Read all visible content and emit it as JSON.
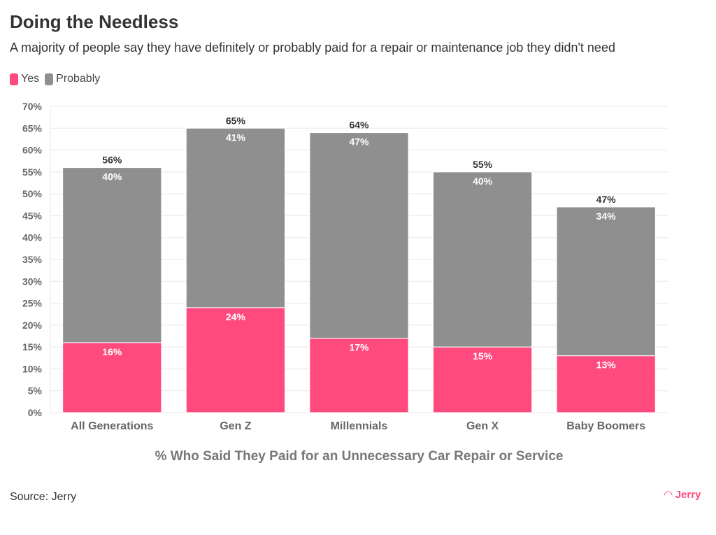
{
  "chart_data": {
    "type": "bar",
    "stacked": true,
    "title": "Doing the Needless",
    "subtitle": "A majority of people say they have definitely or probably paid for a repair or maintenance job they didn't need",
    "xlabel": "% Who Said They Paid for an Unnecessary Car Repair or Service",
    "ylabel": "",
    "categories": [
      "All Generations",
      "Gen Z",
      "Millennials",
      "Gen X",
      "Baby Boomers"
    ],
    "series": [
      {
        "name": "Yes",
        "color": "#ff4a7d",
        "values": [
          16,
          24,
          17,
          15,
          13
        ]
      },
      {
        "name": "Probably",
        "color": "#8f8f8f",
        "values": [
          40,
          41,
          47,
          40,
          34
        ]
      }
    ],
    "totals": [
      56,
      65,
      64,
      55,
      47
    ],
    "ylim": [
      0,
      70
    ],
    "yticks": [
      0,
      5,
      10,
      15,
      20,
      25,
      30,
      35,
      40,
      45,
      50,
      55,
      60,
      65,
      70
    ],
    "ytick_format": "%",
    "grid": true,
    "legend": "top-left"
  },
  "source": "Source: Jerry",
  "logo": "Jerry"
}
